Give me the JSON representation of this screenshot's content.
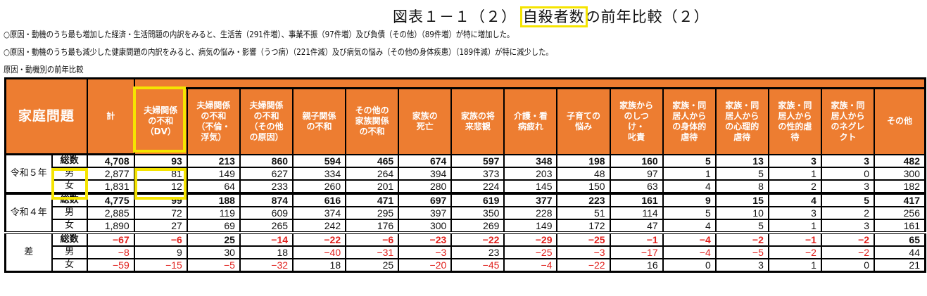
{
  "title": {
    "prefix": "図表１－１（２）",
    "highlight": "自殺者数",
    "suffix": "の前年比較（２）"
  },
  "notes": [
    "○原因・動機のうち最も増加した経済・生活問題の内訳をみると、生活苦（291件増）、事業不振（97件増）及び負債（その他）（89件増）が特に増加した。",
    "○原因・動機のうち最も減少した健康問題の内訳をみると、病気の悩み・影響（うつ病）（221件減）及び病気の悩み（その他の身体疾患）（189件減）が特に減少した。"
  ],
  "caption": "原因・動機別の前年比較",
  "table": {
    "category": "家庭問題",
    "columns": [
      "計",
      "夫婦関係の不和（DV）",
      "夫婦関係の不和（不倫・浮気）",
      "夫婦関係の不和（その他の原因）",
      "親子関係の不和",
      "その他の家族関係の不和",
      "家族の死亡",
      "家族の将来悲観",
      "介護・看病疲れ",
      "子育ての悩み",
      "家族からのしつけ・叱責",
      "家族・同居人からの身体的虐待",
      "家族・同居人からの心理的虐待",
      "家族・同居人からの性的虐待",
      "家族・同居人からのネグレクト",
      "その他"
    ],
    "columns_display": [
      "計",
      "夫婦関係\nの不和\n（DV）",
      "夫婦関係\nの不和\n（不倫・\n浮気）",
      "夫婦関係\nの不和\n（その他\nの原因）",
      "親子関係\nの不和",
      "その他の\n家族関係\nの不和",
      "家族の\n死亡",
      "家族の将\n来悲観",
      "介護・看\n病疲れ",
      "子育ての\n悩み",
      "家族から\nのしつ\nけ・\n叱責",
      "家族・同\n居人から\nの身体的\n虐待",
      "家族・同\n居人から\nの心理的\n虐待",
      "家族・同\n居人から\nの性的虐\n待",
      "家族・同\n居人から\nのネグレ\nクト",
      "その他"
    ],
    "groups": [
      {
        "label": "令和５年",
        "rows": [
          {
            "label": "総数",
            "values": [
              "4,708",
              "93",
              "213",
              "860",
              "594",
              "465",
              "674",
              "597",
              "348",
              "198",
              "160",
              "5",
              "13",
              "3",
              "3",
              "482"
            ]
          },
          {
            "label": "男",
            "values": [
              "2,877",
              "81",
              "149",
              "627",
              "334",
              "264",
              "394",
              "373",
              "203",
              "48",
              "97",
              "1",
              "5",
              "1",
              "0",
              "300"
            ]
          },
          {
            "label": "女",
            "values": [
              "1,831",
              "12",
              "64",
              "233",
              "260",
              "201",
              "280",
              "224",
              "145",
              "150",
              "63",
              "4",
              "8",
              "2",
              "3",
              "182"
            ]
          }
        ]
      },
      {
        "label": "令和４年",
        "rows": [
          {
            "label": "総数",
            "values": [
              "4,775",
              "99",
              "188",
              "874",
              "616",
              "471",
              "697",
              "619",
              "377",
              "223",
              "161",
              "9",
              "15",
              "4",
              "5",
              "417"
            ]
          },
          {
            "label": "男",
            "values": [
              "2,885",
              "72",
              "119",
              "609",
              "374",
              "295",
              "397",
              "350",
              "228",
              "51",
              "114",
              "5",
              "10",
              "3",
              "2",
              "256"
            ]
          },
          {
            "label": "女",
            "values": [
              "1,890",
              "27",
              "69",
              "265",
              "242",
              "176",
              "300",
              "269",
              "149",
              "172",
              "47",
              "4",
              "5",
              "1",
              "3",
              "161"
            ]
          }
        ]
      },
      {
        "label": "差",
        "rows": [
          {
            "label": "総数",
            "values": [
              "-67",
              "-6",
              "25",
              "-14",
              "-22",
              "-6",
              "-23",
              "-22",
              "-29",
              "-25",
              "-1",
              "-4",
              "-2",
              "-1",
              "-2",
              "65"
            ]
          },
          {
            "label": "男",
            "values": [
              "-8",
              "9",
              "30",
              "18",
              "-40",
              "-31",
              "-3",
              "23",
              "-25",
              "-3",
              "-17",
              "-4",
              "-5",
              "-2",
              "-2",
              "44"
            ]
          },
          {
            "label": "女",
            "values": [
              "-59",
              "-15",
              "-5",
              "-32",
              "18",
              "25",
              "-20",
              "-45",
              "-4",
              "-22",
              "16",
              "0",
              "3",
              "1",
              "0",
              "21"
            ]
          }
        ]
      }
    ]
  },
  "colors": {
    "header_bg": "#ed7d31",
    "header_text": "#ffffff",
    "negative": "#e0201c",
    "highlight": "#f5e400"
  }
}
